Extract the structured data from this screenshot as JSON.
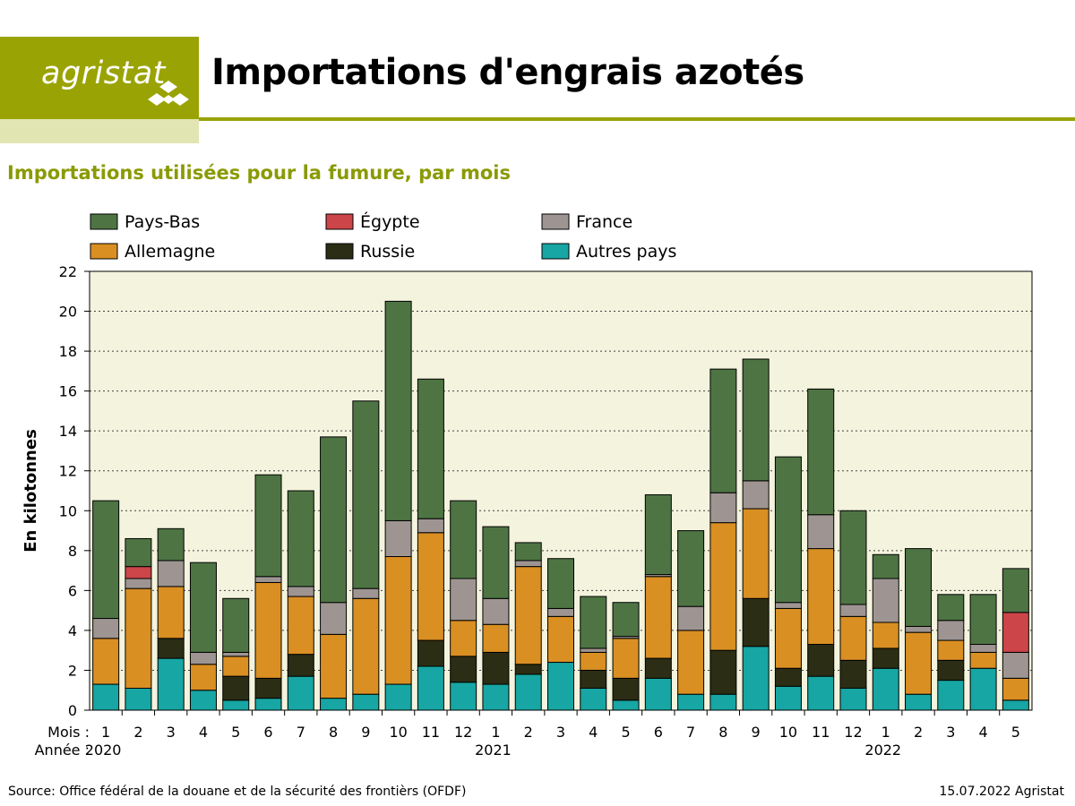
{
  "header": {
    "logo_text": "agristat",
    "title": "Importations d'engrais azotés",
    "subtitle": "Importations utilisées pour la fumure, par mois"
  },
  "footer": {
    "source": "Source: Office fédéral de la douane et de la sécurité des frontièrs (OFDF)",
    "date": "15.07.2022 Agristat"
  },
  "colors": {
    "brand": "#9aa304",
    "brand_light": "#e1e5b2",
    "subtitle": "#8a9a05",
    "plot_bg": "#f4f3dd"
  },
  "chart_data": {
    "type": "bar",
    "stacked": true,
    "ylabel": "En kilotonnes",
    "ylim": [
      0,
      22
    ],
    "yticks": [
      0,
      2,
      4,
      6,
      8,
      10,
      12,
      14,
      16,
      18,
      20,
      22
    ],
    "grid": "horizontal dotted",
    "legend_position": "top",
    "row_labels": {
      "month": "Mois :",
      "year": "Année :"
    },
    "categories": [
      "1",
      "2",
      "3",
      "4",
      "5",
      "6",
      "7",
      "8",
      "9",
      "10",
      "11",
      "12",
      "1",
      "2",
      "3",
      "4",
      "5",
      "6",
      "7",
      "8",
      "9",
      "10",
      "11",
      "12",
      "1",
      "2",
      "3",
      "4",
      "5"
    ],
    "years": [
      {
        "label": "2020",
        "start_index": 0
      },
      {
        "label": "2021",
        "start_index": 12
      },
      {
        "label": "2022",
        "start_index": 24
      }
    ],
    "series": [
      {
        "name": "Autres pays",
        "color": "#17a6a3",
        "values": [
          1.3,
          1.1,
          2.6,
          1.0,
          0.5,
          0.6,
          1.7,
          0.6,
          0.8,
          1.3,
          2.2,
          1.4,
          1.3,
          1.8,
          2.4,
          1.1,
          0.5,
          1.6,
          0.8,
          0.8,
          3.2,
          1.2,
          1.7,
          1.1,
          2.1,
          0.8,
          1.5,
          2.1,
          0.5
        ]
      },
      {
        "name": "Russie",
        "color": "#2b2e14",
        "values": [
          0,
          0,
          1.0,
          0,
          1.2,
          1.0,
          1.1,
          0,
          0,
          0,
          1.3,
          1.3,
          1.6,
          0.5,
          0,
          0.9,
          1.1,
          1.0,
          0,
          2.2,
          2.4,
          0.9,
          1.6,
          1.4,
          1.0,
          0,
          1.0,
          0,
          0
        ]
      },
      {
        "name": "Allemagne",
        "color": "#d98f22",
        "values": [
          2.3,
          5.0,
          2.6,
          1.3,
          1.0,
          4.8,
          2.9,
          3.2,
          4.8,
          6.4,
          5.4,
          1.8,
          1.4,
          4.9,
          2.3,
          0.9,
          2.0,
          4.1,
          3.2,
          6.4,
          4.5,
          3.0,
          4.8,
          2.2,
          1.3,
          3.1,
          1.0,
          0.8,
          1.1
        ]
      },
      {
        "name": "France",
        "color": "#9e9592",
        "values": [
          1.0,
          0.5,
          1.3,
          0.6,
          0.2,
          0.3,
          0.5,
          1.6,
          0.5,
          1.8,
          0.7,
          2.1,
          1.3,
          0.3,
          0.4,
          0.2,
          0.1,
          0.1,
          1.2,
          1.5,
          1.4,
          0.3,
          1.7,
          0.6,
          2.2,
          0.3,
          1.0,
          0.4,
          1.3
        ]
      },
      {
        "name": "Égypte",
        "color": "#cc4548",
        "values": [
          0,
          0.6,
          0,
          0,
          0,
          0,
          0,
          0,
          0,
          0,
          0,
          0,
          0,
          0,
          0,
          0,
          0,
          0,
          0,
          0,
          0,
          0,
          0,
          0,
          0,
          0,
          0,
          0,
          2.0
        ]
      },
      {
        "name": "Pays-Bas",
        "color": "#4e7444",
        "values": [
          5.9,
          1.4,
          1.6,
          4.5,
          2.7,
          5.1,
          4.8,
          8.3,
          9.4,
          11.0,
          7.0,
          3.9,
          3.6,
          0.9,
          2.5,
          2.6,
          1.7,
          4.0,
          3.8,
          6.2,
          6.1,
          7.3,
          6.3,
          4.7,
          1.2,
          3.9,
          1.3,
          2.5,
          2.2
        ]
      }
    ],
    "legend_order": [
      "Pays-Bas",
      "Égypte",
      "France",
      "Allemagne",
      "Russie",
      "Autres pays"
    ]
  }
}
